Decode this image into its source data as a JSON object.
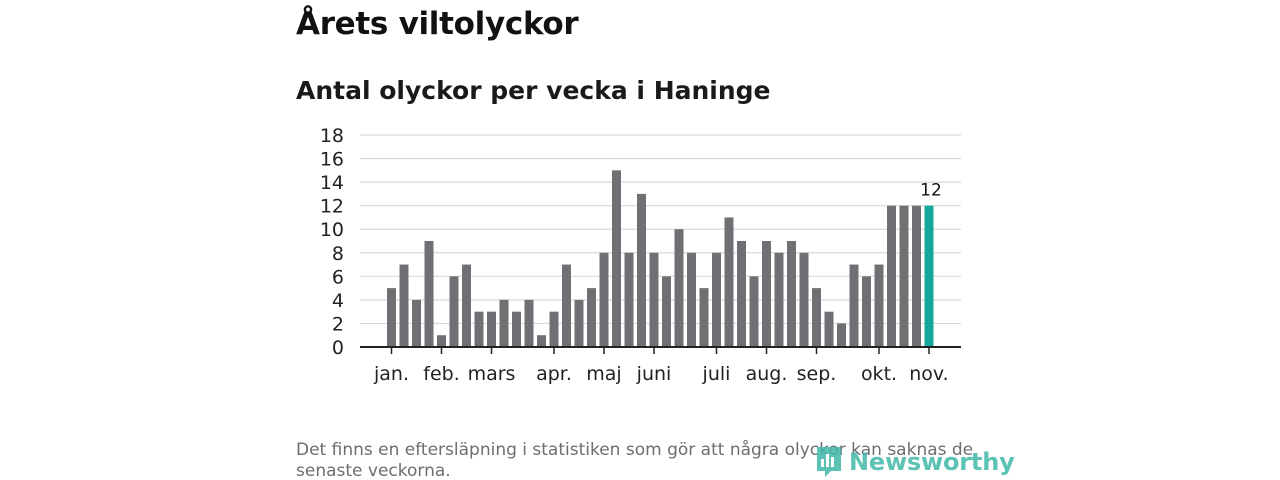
{
  "page": {
    "title": "Årets viltolyckor",
    "subtitle": "Antal olyckor per vecka i Haninge",
    "footnote": "Det finns en eftersläpning i statistiken som gör att några olyckor kan saknas de senaste veckorna.",
    "logo_text": "Newsworthy"
  },
  "chart_data": {
    "type": "bar",
    "title": "Antal olyckor per vecka i Haninge",
    "xlabel": "",
    "ylabel": "",
    "ylim": [
      0,
      18
    ],
    "yticks": [
      "0",
      "2",
      "4",
      "6",
      "8",
      "10",
      "12",
      "14",
      "16",
      "18"
    ],
    "grid": true,
    "legend": "none",
    "values": [
      5,
      7,
      4,
      9,
      1,
      6,
      7,
      3,
      3,
      4,
      3,
      4,
      1,
      3,
      7,
      4,
      5,
      8,
      15,
      8,
      13,
      8,
      6,
      10,
      8,
      5,
      8,
      11,
      9,
      6,
      9,
      8,
      9,
      8,
      5,
      3,
      2,
      7,
      6,
      7,
      12,
      12,
      12,
      12
    ],
    "month_labels": [
      {
        "label": "jan.",
        "week_index": 0
      },
      {
        "label": "feb.",
        "week_index": 4
      },
      {
        "label": "mars",
        "week_index": 8
      },
      {
        "label": "apr.",
        "week_index": 13
      },
      {
        "label": "maj",
        "week_index": 17
      },
      {
        "label": "juni",
        "week_index": 21
      },
      {
        "label": "juli",
        "week_index": 26
      },
      {
        "label": "aug.",
        "week_index": 30
      },
      {
        "label": "sep.",
        "week_index": 34
      },
      {
        "label": "okt.",
        "week_index": 39
      },
      {
        "label": "nov.",
        "week_index": 43
      }
    ],
    "highlight_index": 43,
    "highlight_label": "12",
    "colors": {
      "bar": "#707074",
      "highlight": "#12a89a",
      "grid": "#d9d9d9",
      "axis": "#222222",
      "text": "#222222"
    }
  }
}
